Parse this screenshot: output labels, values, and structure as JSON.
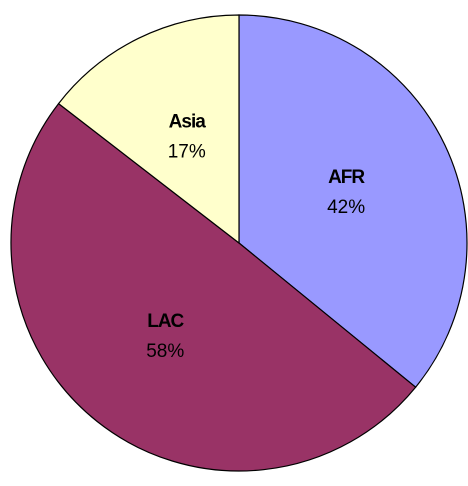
{
  "chart_data": {
    "type": "pie",
    "categories": [
      "AFR",
      "LAC",
      "Asia"
    ],
    "values": [
      42,
      58,
      17
    ],
    "value_labels": [
      "42%",
      "58%",
      "17%"
    ],
    "colors": [
      "#9999ff",
      "#993366",
      "#ffffcc"
    ]
  }
}
